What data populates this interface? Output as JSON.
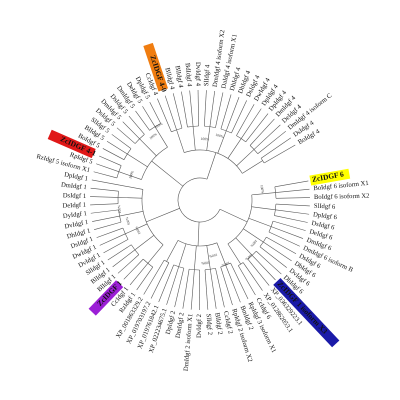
{
  "tree": {
    "leaves": [
      "ZcIDGF 6",
      "BoIdgf 6 isoform X1",
      "BoIdgf 6 isoform X2",
      "SlIdgf 6",
      "DpIdgf 6",
      "DsIdgf 6",
      "DeIdgf 6",
      "DmIdgf 6",
      "DmIdgf 6 isoform B",
      "DsIdgf 6",
      "DbIdgf 6",
      "DvIdgf 6",
      "DhIdgf 6",
      "ZcIDGF 1 isoform X3",
      "XP_036329223.1",
      "XP_012862053.1",
      "CcIdgf 6",
      "RpIdgf 3 isoform X1",
      "BmIdgf 2",
      "RpIdgf 2 isoform X2",
      "CcIdgf 2",
      "BlIdgf 2",
      "SlIdgf 2",
      "DvIdgf 2",
      "DmIdgf 2 isoform X1",
      "DmIdgf 2",
      "DpIdgf 2",
      "XP_022234675.1",
      "XP_019761842.1",
      "XP_019703197.2",
      "XP_001863329.2",
      "RzIdgf 1",
      "CcIdgf 1",
      "ZcIDGF 1",
      "BlIdgf 1",
      "BlIdgf 1",
      "SlIdgf 1",
      "DvIdgf 1",
      "DwIdgf 1",
      "DsIdgf 1",
      "DhIdgf 1",
      "DvIdgf 1",
      "DyIdgf 1",
      "DeIdgf 1",
      "DsIdgf 1",
      "DmIdgf 1",
      "DpIdgf 1",
      "RzIdgf 5 isoform X1",
      "RpIdgf 5",
      "ZcIDGF 4-1",
      "BoIdgf 5",
      "BlIdgf 5",
      "SlIdgf 5",
      "DsIdgf 5",
      "DmIdgf 5",
      "DsIdgf 5",
      "DmIdgf 5",
      "DeIdgf 5",
      "DpIdgf 5",
      "CcIdgf 4",
      "ZcIDGF 4-0",
      "BlIdgf 4",
      "BlIdgf 4",
      "BdIdgf 4",
      "DvIdgf 4",
      "SlIdgf 4",
      "DmIdgf 4 isoform X2",
      "DaIdgf 4 isoform X1",
      "DhIdgf 4",
      "DbIdgf 4",
      "DsIdgf 4",
      "DwIdgf 4",
      "DpIdgf 4",
      "DpIdgf 4",
      "DmIdgf 4",
      "DeIdgf 4",
      "DmIdgf 4 isoform C",
      "DsIdgf 4",
      "BoIdgf 4"
    ],
    "bootstrap": [
      "100%",
      "100%",
      "100%",
      "100%",
      "100%",
      "100%",
      "100%",
      "100%",
      "100%",
      "100%",
      "100%",
      "100%",
      "100%",
      "100%"
    ],
    "highlights": [
      {
        "label": "ZcIDGF 6",
        "color": "#ffff00"
      },
      {
        "label": "ZcIDGF 1 isoform X3",
        "color": "#1a1aa8"
      },
      {
        "label": "ZcIDGF 1",
        "color": "#9b1fd6"
      },
      {
        "label": "ZcIDGF 4-1",
        "color": "#e01818"
      },
      {
        "label": "ZcIDGF 4-0",
        "color": "#f07d10"
      }
    ]
  }
}
